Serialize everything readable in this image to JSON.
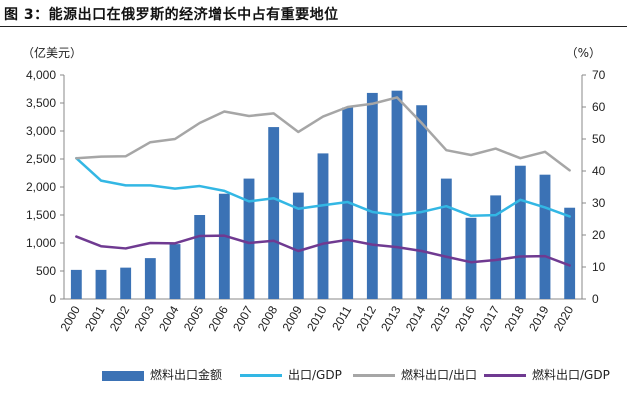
{
  "figure": {
    "title": "图 3：能源出口在俄罗斯的经济增长中占有重要地位",
    "left_unit": "（亿美元）",
    "right_unit": "（%）"
  },
  "chart_data": {
    "type": "bar+line",
    "categories": [
      "2000",
      "2001",
      "2002",
      "2003",
      "2004",
      "2005",
      "2006",
      "2007",
      "2008",
      "2009",
      "2010",
      "2011",
      "2012",
      "2013",
      "2014",
      "2015",
      "2016",
      "2017",
      "2018",
      "2019",
      "2020"
    ],
    "left_axis": {
      "ylim": [
        0,
        4000
      ],
      "ticks": [
        "0",
        "500",
        "1,000",
        "1,500",
        "2,000",
        "2,500",
        "3,000",
        "3,500",
        "4,000"
      ],
      "tick_values": [
        0,
        500,
        1000,
        1500,
        2000,
        2500,
        3000,
        3500,
        4000
      ]
    },
    "right_axis": {
      "ylim": [
        0,
        70
      ],
      "ticks": [
        "0",
        "10",
        "20",
        "30",
        "40",
        "50",
        "60",
        "70"
      ],
      "tick_values": [
        0,
        10,
        20,
        30,
        40,
        50,
        60,
        70
      ]
    },
    "series": [
      {
        "name": "燃料出口金额",
        "type": "bar",
        "axis": "left",
        "color": "#3b72b5",
        "values": [
          520,
          520,
          560,
          730,
          980,
          1500,
          1880,
          2150,
          3070,
          1900,
          2600,
          3420,
          3680,
          3720,
          3460,
          2150,
          1450,
          1850,
          2380,
          2220,
          1630
        ]
      },
      {
        "name": "出口/GDP",
        "type": "line",
        "axis": "right",
        "color": "#33b7e4",
        "values": [
          44,
          37,
          35.5,
          35.5,
          34.5,
          35.3,
          33.8,
          30.5,
          31.5,
          28.2,
          29.3,
          30.3,
          27.2,
          26.2,
          27.2,
          29,
          26,
          26.2,
          31,
          28.6,
          25.8
        ]
      },
      {
        "name": "燃料出口/出口",
        "type": "line",
        "axis": "right",
        "color": "#a6a6a6",
        "values": [
          44,
          44.5,
          44.6,
          49,
          50,
          55,
          58.6,
          57.2,
          58,
          52.2,
          57,
          60,
          61,
          63,
          55,
          46.5,
          45,
          47,
          44,
          46,
          40.2
        ]
      },
      {
        "name": "燃料出口/GDP",
        "type": "line",
        "axis": "right",
        "color": "#6f3a91",
        "values": [
          19.5,
          16.5,
          15.8,
          17.5,
          17.4,
          19.7,
          19.8,
          17.5,
          18.2,
          15,
          17.3,
          18.5,
          17,
          16.2,
          15,
          13.2,
          11.5,
          12.2,
          13.3,
          13.4,
          10.5
        ]
      }
    ]
  }
}
